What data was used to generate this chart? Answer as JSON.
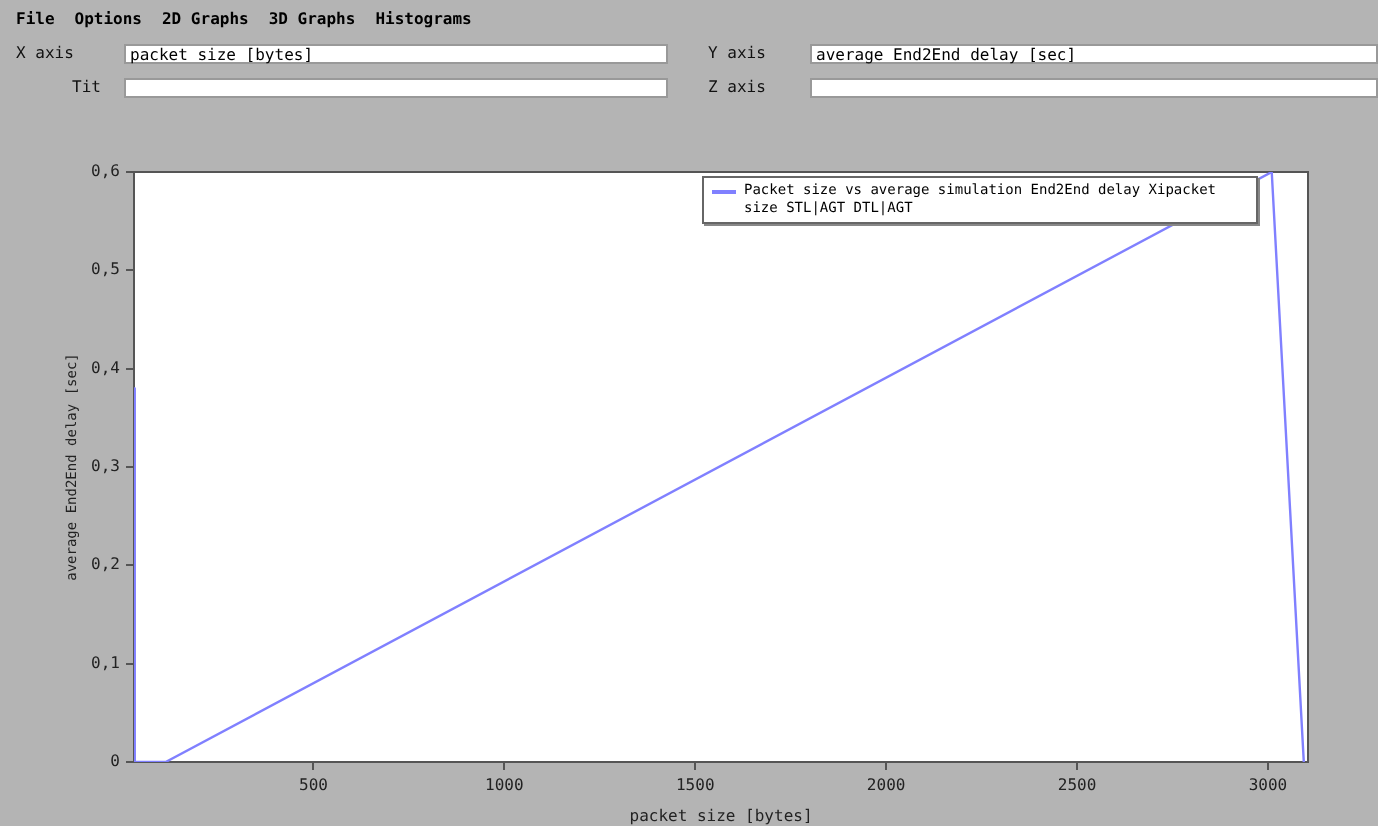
{
  "chart_data": {
    "type": "line",
    "xlabel": "packet size [bytes]",
    "ylabel": "average End2End delay [sec]",
    "annotations": [
      "File",
      "Options",
      "2D Graphs",
      "3D Graphs",
      "Histograms",
      "X axis",
      "packet size [bytes]",
      "Y axis",
      "average End2End delay [sec]",
      "Tit",
      "Z axis"
    ],
    "series": [
      {
        "name": "Packet size vs average simulation End2End delay Xipacket size STL|AGT DTL|AGT",
        "color": "#8080ff",
        "x": [
          32,
          32,
          113,
          3010,
          3094
        ],
        "values": [
          0.38,
          0,
          0,
          0.6,
          0
        ]
      }
    ],
    "xlim": [
      30,
      3105
    ],
    "xticks": [
      500,
      1000,
      1500,
      2000,
      2500,
      3000
    ],
    "ylim": [
      0,
      0.6
    ],
    "yticks": [
      {
        "value": 0,
        "label": "0"
      },
      {
        "value": 0.1,
        "label": "0,1"
      },
      {
        "value": 0.2,
        "label": "0,2"
      },
      {
        "value": 0.3,
        "label": "0,3"
      },
      {
        "value": 0.4,
        "label": "0,4"
      },
      {
        "value": 0.5,
        "label": "0,5"
      },
      {
        "value": 0.6,
        "label": "0,6"
      }
    ],
    "legend": "top right",
    "grid": false,
    "marker": "none",
    "line_style": "solid"
  }
}
